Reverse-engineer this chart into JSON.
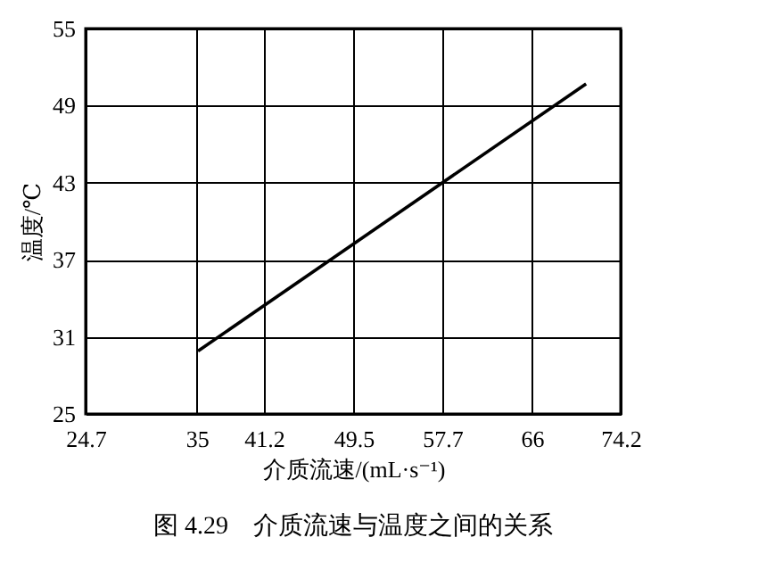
{
  "chart_data": {
    "type": "line",
    "xlabel": "介质流速/(mL·s⁻¹)",
    "ylabel": "温度/℃",
    "annotations": [
      "图 4.29　介质流速与温度之间的关系"
    ],
    "x": [
      35.1,
      71.0
    ],
    "series": [
      {
        "color": "#000000",
        "values": [
          29.9,
          50.7
        ]
      }
    ],
    "xlim": [
      24.7,
      74.2
    ],
    "xticks": [
      24.7,
      35,
      41.2,
      49.5,
      57.7,
      66,
      74.2
    ],
    "ylim": [
      25,
      55
    ],
    "yticks": [
      25,
      31,
      37,
      43,
      49,
      55
    ],
    "grid": true
  }
}
